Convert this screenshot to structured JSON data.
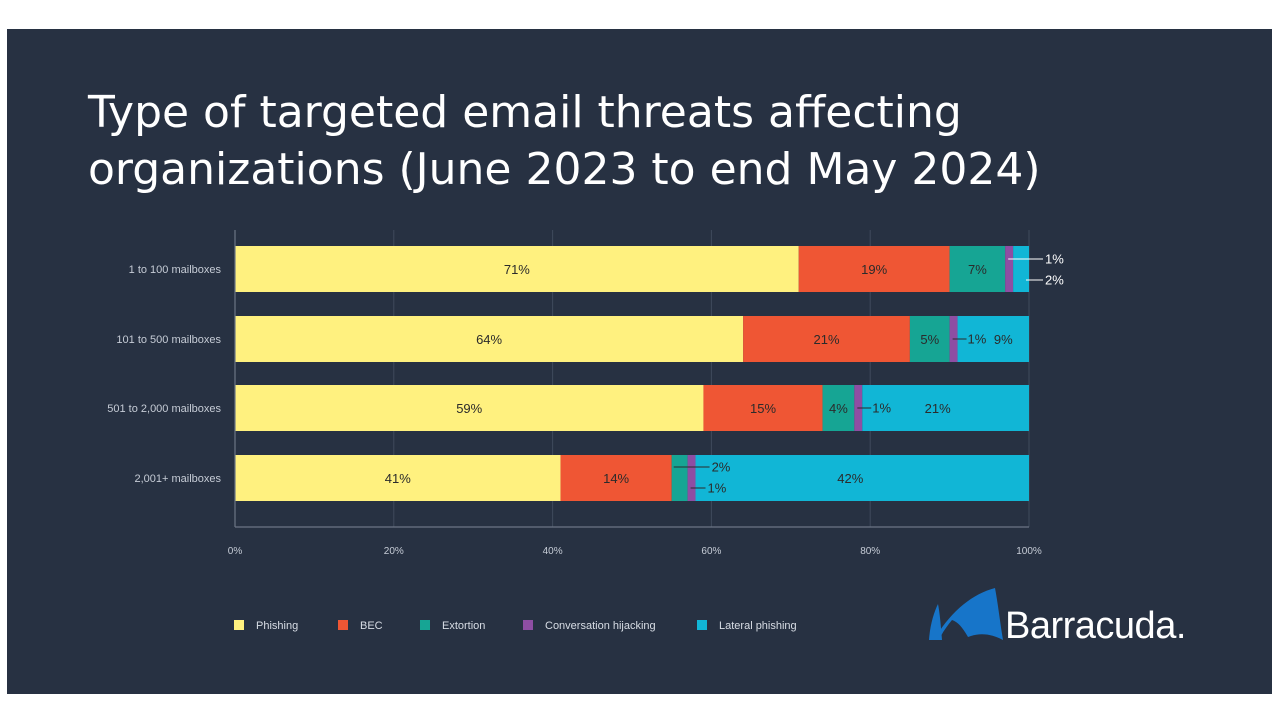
{
  "chart_data": {
    "type": "bar",
    "orientation": "horizontal",
    "stacked": true,
    "title": "Type of targeted email threats affecting organizations (June 2023 to end May 2024)",
    "title_lines": [
      "Type of targeted email threats affecting",
      "organizations (June 2023 to end May 2024)"
    ],
    "categories": [
      "1 to 100 mailboxes",
      "101 to 500 mailboxes",
      "501 to 2,000 mailboxes",
      "2,001+ mailboxes"
    ],
    "xlim": [
      0,
      100
    ],
    "x_ticks": [
      "0%",
      "20%",
      "40%",
      "60%",
      "80%",
      "100%"
    ],
    "grid": true,
    "legend_position": "bottom",
    "series": [
      {
        "name": "Phishing",
        "color": "#fff17f",
        "values": [
          71,
          64,
          59,
          41
        ],
        "labels": [
          "71%",
          "64%",
          "59%",
          "41%"
        ]
      },
      {
        "name": "BEC",
        "color": "#ef5634",
        "values": [
          19,
          21,
          15,
          14
        ],
        "labels": [
          "19%",
          "21%",
          "15%",
          "14%"
        ]
      },
      {
        "name": "Extortion",
        "color": "#16a594",
        "values": [
          7,
          5,
          4,
          2
        ],
        "labels": [
          "7%",
          "5%",
          "4%",
          "2%"
        ]
      },
      {
        "name": "Conversation hijacking",
        "color": "#8e4ea3",
        "values": [
          1,
          1,
          1,
          1
        ],
        "labels": [
          "1%",
          "1%",
          "1%",
          "1%"
        ]
      },
      {
        "name": "Lateral phishing",
        "color": "#11b6d6",
        "values": [
          2,
          9,
          21,
          42
        ],
        "labels": [
          "2%",
          "9%",
          "21%",
          "42%"
        ]
      }
    ]
  },
  "brand": {
    "name": "Barracuda.",
    "color": "#1775c9"
  }
}
